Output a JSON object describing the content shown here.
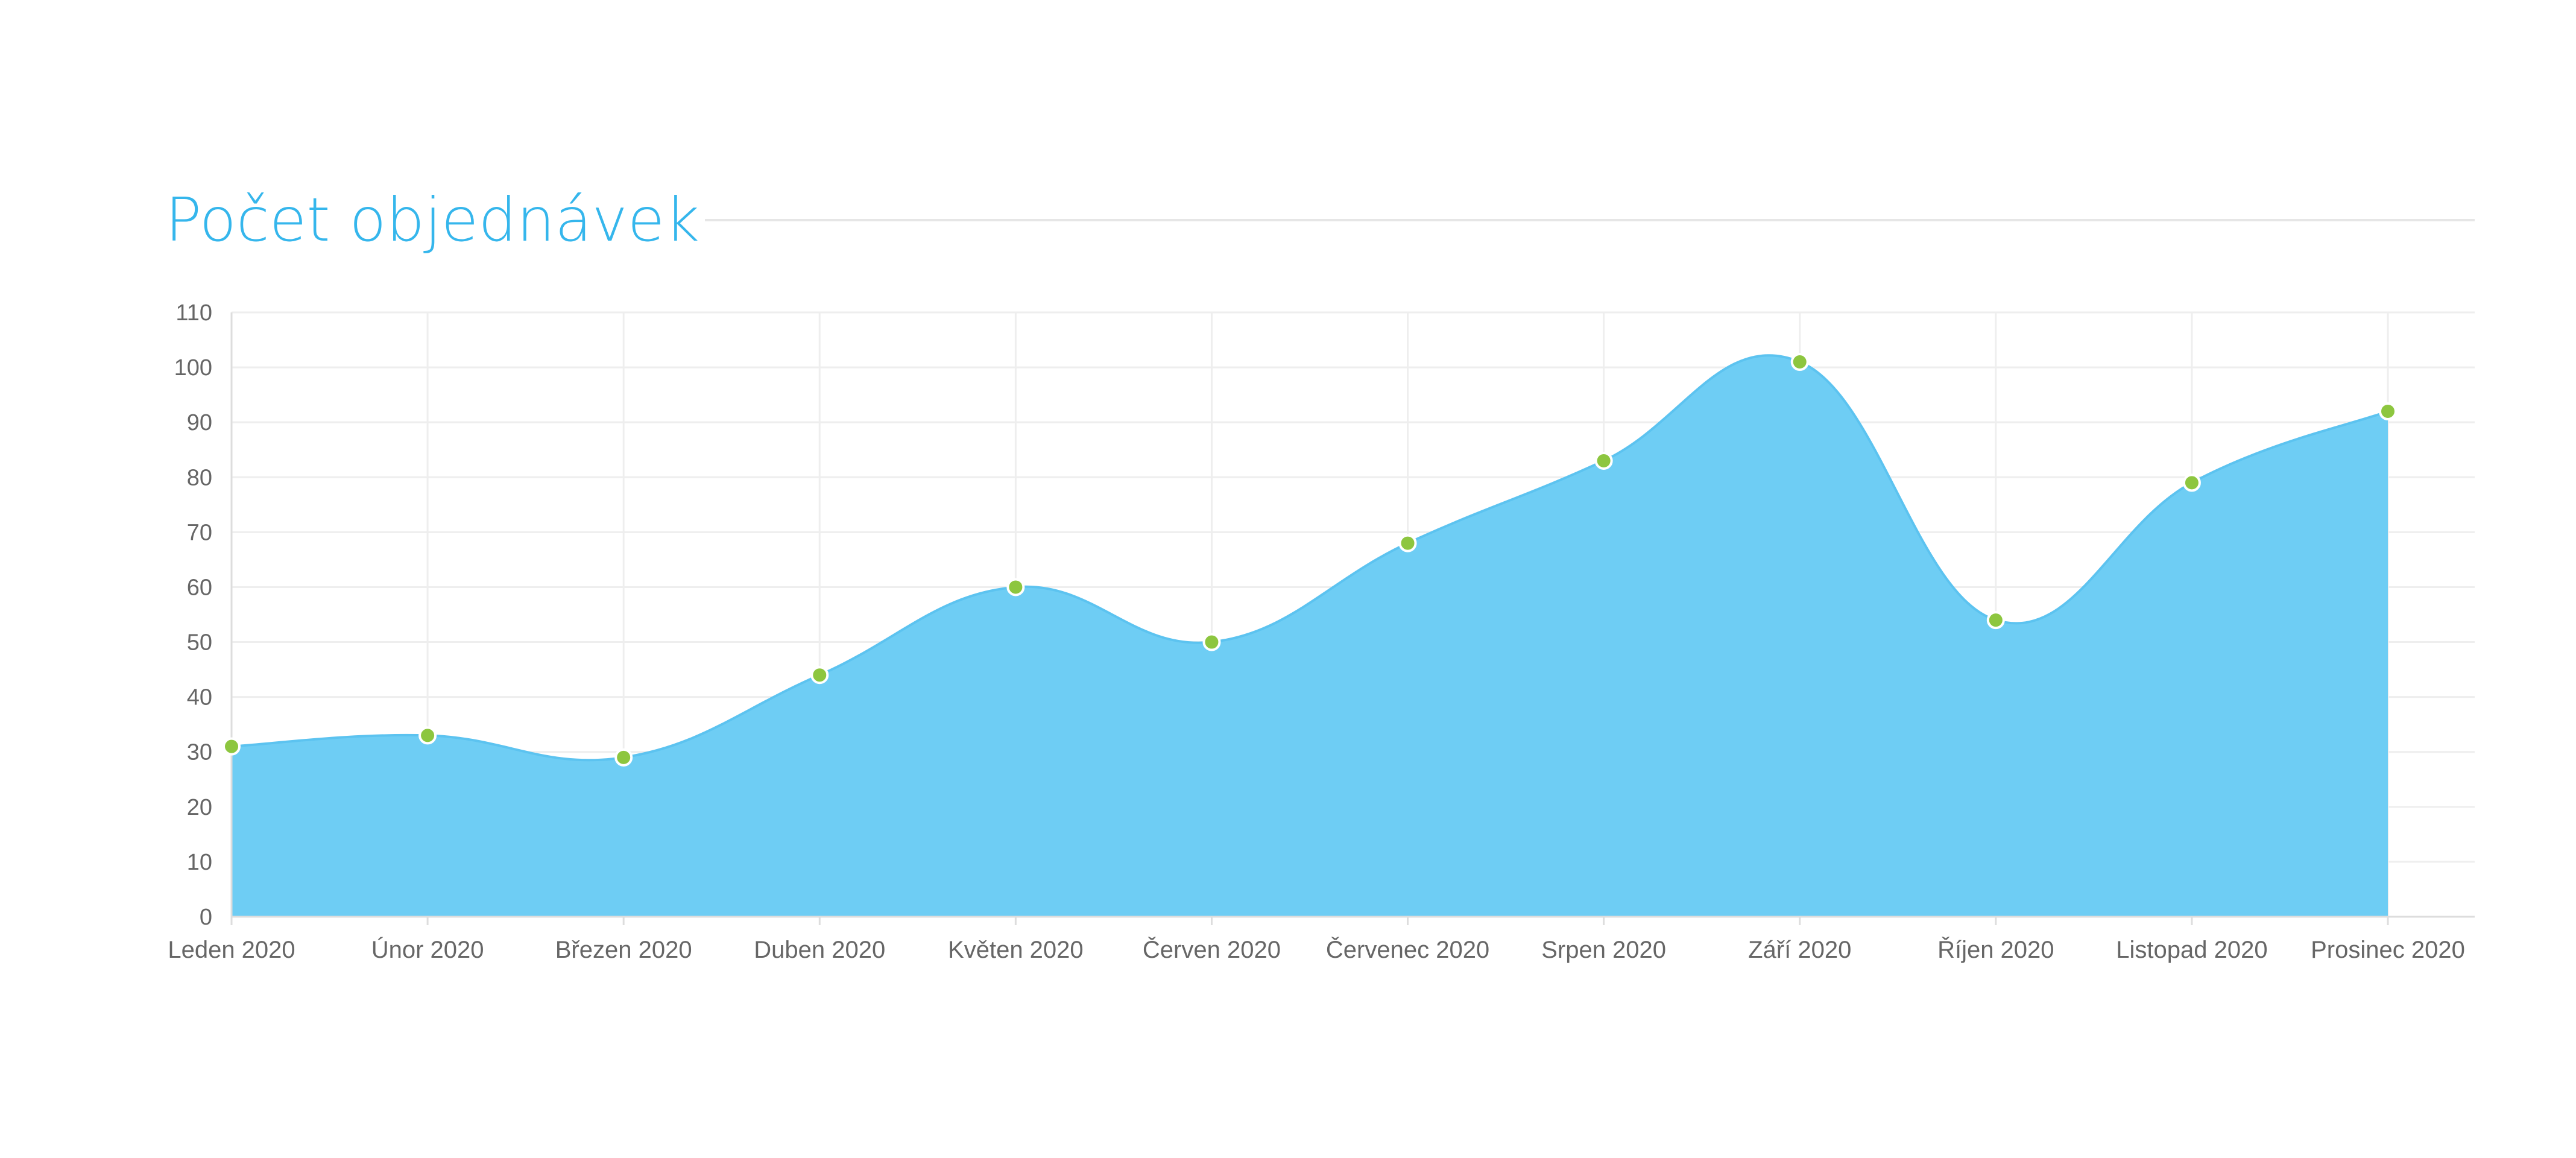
{
  "header": {
    "title": "Počet objednávek"
  },
  "colors": {
    "title": "#35b6ec",
    "area_fill": "#6ecdf4",
    "area_line": "#5cc3f0",
    "point_fill": "#8dc63f",
    "point_stroke": "#ffffff",
    "grid": "#eeeeee",
    "axis": "#dddddd",
    "tick_text": "#666666"
  },
  "chart_data": {
    "type": "area",
    "title": "Počet objednávek",
    "xlabel": "",
    "ylabel": "",
    "categories": [
      "Leden 2020",
      "Únor 2020",
      "Březen 2020",
      "Duben 2020",
      "Květen 2020",
      "Červen 2020",
      "Červenec 2020",
      "Srpen 2020",
      "Září 2020",
      "Říjen 2020",
      "Listopad 2020",
      "Prosinec 2020"
    ],
    "series": [
      {
        "values": [
          31,
          33,
          29,
          44,
          60,
          50,
          68,
          83,
          101,
          54,
          79,
          92
        ]
      }
    ],
    "ylim": [
      0,
      110
    ],
    "yticks": [
      0,
      10,
      20,
      30,
      40,
      50,
      60,
      70,
      80,
      90,
      100,
      110
    ],
    "grid": true,
    "curve": "smooth",
    "markers": true,
    "legend": "none"
  }
}
